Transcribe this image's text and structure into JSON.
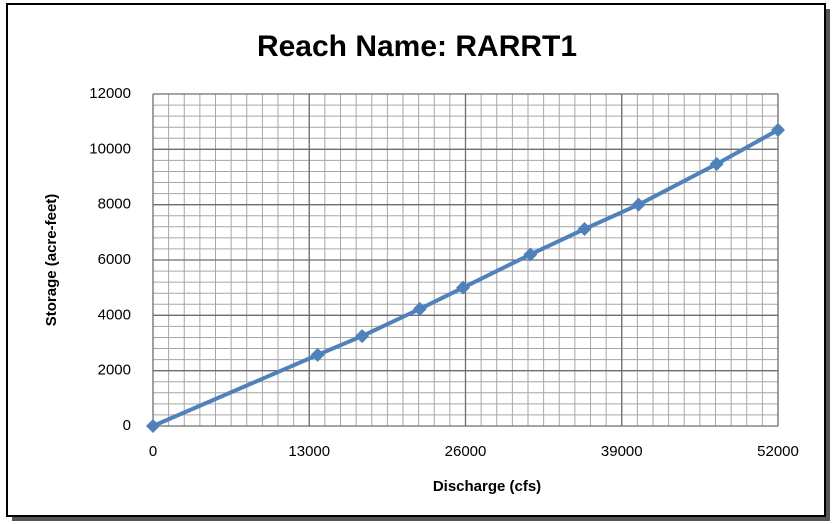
{
  "chart_data": {
    "type": "line",
    "title": "Reach Name: RARRT1",
    "xlabel": "Discharge (cfs)",
    "ylabel": "Storage (acre-feet)",
    "series": [
      {
        "color": "#4f81bd",
        "x": [
          0,
          13700,
          17400,
          22200,
          25800,
          31400,
          35900,
          40400,
          46900,
          52000
        ],
        "values": [
          0,
          2570,
          3250,
          4230,
          5000,
          6200,
          7120,
          8000,
          9470,
          10700
        ]
      }
    ],
    "xlim": [
      0,
      52000
    ],
    "xticks": [
      0,
      13000,
      26000,
      39000,
      52000
    ],
    "ylim": [
      0,
      12000
    ],
    "yticks": [
      0,
      2000,
      4000,
      6000,
      8000,
      10000,
      12000
    ],
    "grid": true,
    "minor_grid": {
      "x": 1300,
      "y": 400
    },
    "marker": "diamond"
  }
}
